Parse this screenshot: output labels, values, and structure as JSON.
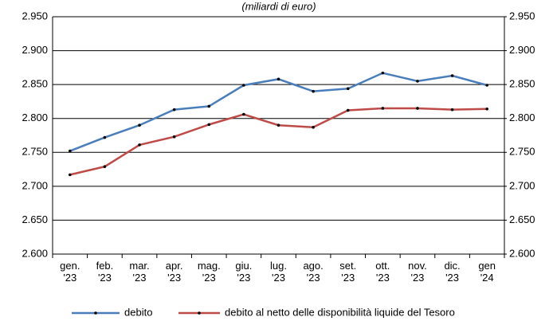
{
  "chart_data": {
    "type": "line",
    "title": "(miliardi di euro)",
    "categories": [
      "gen.\n'23",
      "feb.\n'23",
      "mar.\n'23",
      "apr.\n'23",
      "mag.\n'23",
      "giu.\n'23",
      "lug.\n'23",
      "ago.\n'23",
      "set.\n'23",
      "ott.\n'23",
      "nov.\n'23",
      "dic.\n'23",
      "gen\n'24"
    ],
    "series": [
      {
        "name": "debito",
        "color": "#4a7ebb",
        "values": [
          2752,
          2772,
          2790,
          2813,
          2818,
          2849,
          2858,
          2840,
          2844,
          2867,
          2855,
          2863,
          2849
        ]
      },
      {
        "name": "debito al netto delle disponibilità liquide del Tesoro",
        "color": "#be4b48",
        "values": [
          2717,
          2729,
          2761,
          2773,
          2791,
          2806,
          2790,
          2787,
          2812,
          2815,
          2815,
          2813,
          2814
        ]
      }
    ],
    "ylim": [
      2600,
      2950
    ],
    "yticks": [
      {
        "value": 2600,
        "label": "2.600"
      },
      {
        "value": 2650,
        "label": "2.650"
      },
      {
        "value": 2700,
        "label": "2.700"
      },
      {
        "value": 2750,
        "label": "2.750"
      },
      {
        "value": 2800,
        "label": "2.800"
      },
      {
        "value": 2850,
        "label": "2.850"
      },
      {
        "value": 2900,
        "label": "2.900"
      },
      {
        "value": 2950,
        "label": "2.950"
      }
    ],
    "y2lim": [
      2600,
      2950
    ],
    "y2ticks": [
      {
        "value": 2600,
        "label": "2.600"
      },
      {
        "value": 2650,
        "label": "2.650"
      },
      {
        "value": 2700,
        "label": "2.700"
      },
      {
        "value": 2750,
        "label": "2.750"
      },
      {
        "value": 2800,
        "label": "2.800"
      },
      {
        "value": 2850,
        "label": "2.850"
      },
      {
        "value": 2900,
        "label": "2.900"
      },
      {
        "value": 2950,
        "label": "2.950"
      }
    ],
    "grid": true,
    "legend": "bottom"
  }
}
